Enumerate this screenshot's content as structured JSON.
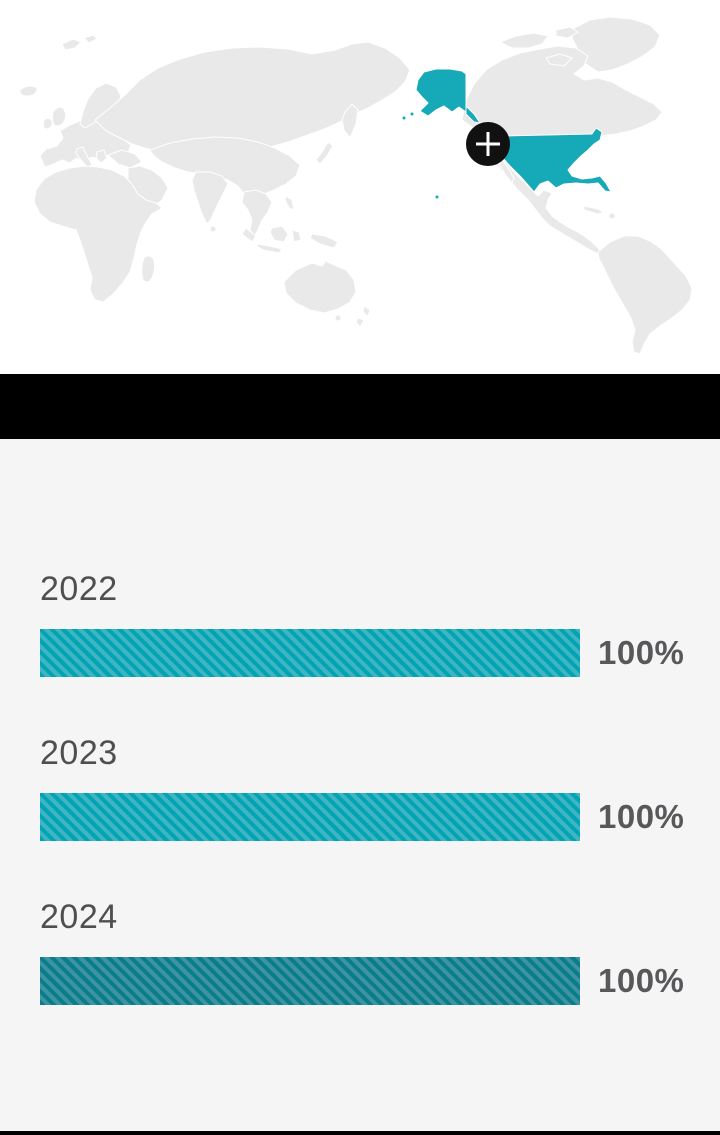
{
  "map": {
    "land_color": "#E9E9E9",
    "highlight_color": "#16A9B7",
    "highlighted_region": "United States",
    "zoom_button_icon": "+"
  },
  "chart_data": {
    "type": "bar",
    "orientation": "horizontal",
    "categories": [
      "2022",
      "2023",
      "2024"
    ],
    "values": [
      100,
      100,
      100
    ],
    "value_labels": [
      "100%",
      "100%",
      "100%"
    ],
    "xlim": [
      0,
      100
    ],
    "grid": false,
    "legend": false,
    "bar_styles": [
      {
        "base": "#00A4B4",
        "stripe": "#3FB5C1"
      },
      {
        "base": "#00A4B4",
        "stripe": "#3FB5C1"
      },
      {
        "base": "#0A7D8C",
        "stripe": "#3D94A0"
      }
    ],
    "label_color": "#4F4F51",
    "value_color": "#58585B",
    "background": "#F5F5F5"
  }
}
